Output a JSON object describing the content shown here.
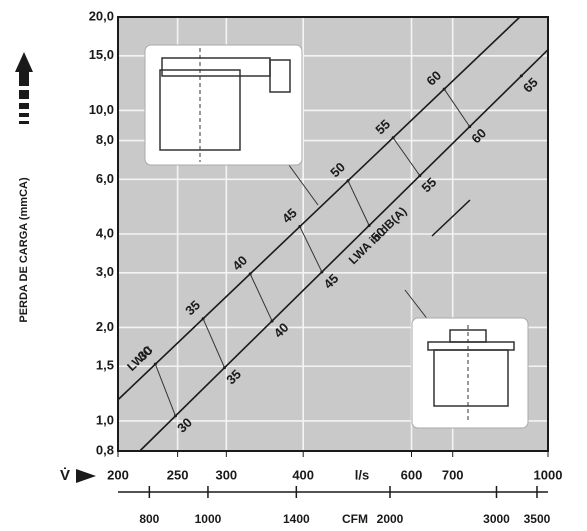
{
  "chart_data": {
    "type": "line",
    "y_label": "PERDA DE CARGA (mmCA)",
    "x_symbol": "V̇",
    "x_unit": "l/s",
    "x2_unit": "CFM",
    "xscale": "log",
    "yscale": "log",
    "grid": true,
    "xlim": [
      200,
      1000
    ],
    "xticks": [
      200,
      250,
      300,
      400,
      600,
      700,
      1000
    ],
    "x2lim": [
      710,
      3650
    ],
    "x2ticks": [
      800,
      1000,
      1400,
      2000,
      3000,
      3500
    ],
    "ylim": [
      0.8,
      20
    ],
    "yticks": [
      {
        "value": 0.8,
        "label": "0,8"
      },
      {
        "value": 1.0,
        "label": "1,0"
      },
      {
        "value": 1.5,
        "label": "1,5"
      },
      {
        "value": 2.0,
        "label": "2,0"
      },
      {
        "value": 3.0,
        "label": "3,0"
      },
      {
        "value": 4.0,
        "label": "4,0"
      },
      {
        "value": 6.0,
        "label": "6,0"
      },
      {
        "value": 8.0,
        "label": "8,0"
      },
      {
        "value": 10.0,
        "label": "10,0"
      },
      {
        "value": 15.0,
        "label": "15,0"
      },
      {
        "value": 20.0,
        "label": "20,0"
      }
    ],
    "series": [
      {
        "name": "LWIC",
        "color": "#1a1a1a",
        "x": [
          200,
          900
        ],
        "values": [
          1.17,
          20
        ],
        "marks": {
          "x": [
            230,
            275,
            328,
            395,
            473,
            560,
            678
          ],
          "labels": [
            30,
            35,
            40,
            45,
            50,
            55,
            60
          ]
        }
      },
      {
        "name": "LWA in dB(A)",
        "color": "#1a1a1a",
        "x": [
          217,
          1000
        ],
        "values": [
          0.8,
          15.7
        ],
        "marks": {
          "x": [
            248,
            298,
            356,
            429,
            512,
            619,
            746,
            905
          ],
          "labels": [
            30,
            35,
            40,
            45,
            50,
            55,
            60,
            65
          ]
        }
      }
    ]
  }
}
